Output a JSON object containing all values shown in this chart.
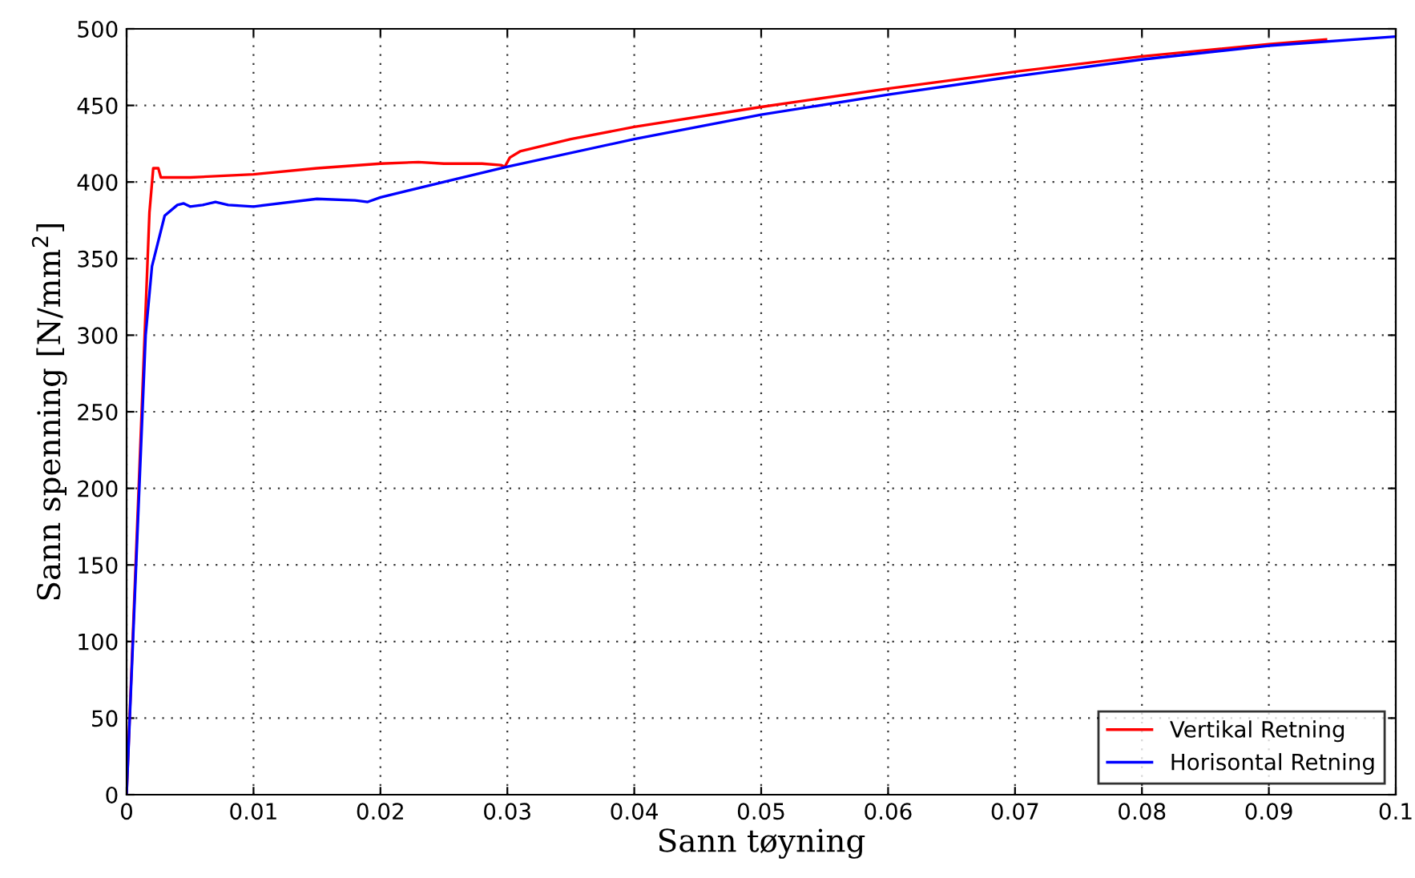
{
  "chart_data": {
    "type": "line",
    "xlabel": "Sann tøyning",
    "ylabel": "Sann spenning [N/mm$^{2}$]",
    "xlim": [
      0,
      0.1
    ],
    "ylim": [
      0,
      500
    ],
    "xticks": [
      0,
      0.01,
      0.02,
      0.03,
      0.04,
      0.05,
      0.06,
      0.07,
      0.08,
      0.09,
      0.1
    ],
    "yticks": [
      0,
      50,
      100,
      150,
      200,
      250,
      300,
      350,
      400,
      450,
      500
    ],
    "grid": true,
    "legend": "bottom right",
    "line_style": "solid",
    "marker": "none",
    "series": [
      {
        "name": "Vertikal Retning",
        "color": "#ff0000",
        "x": [
          0,
          0.001,
          0.0018,
          0.0021,
          0.0025,
          0.0027,
          0.005,
          0.01,
          0.015,
          0.02,
          0.023,
          0.025,
          0.028,
          0.0295,
          0.0298,
          0.0302,
          0.031,
          0.035,
          0.04,
          0.05,
          0.06,
          0.07,
          0.08,
          0.09,
          0.0945
        ],
        "values": [
          0,
          210,
          380,
          409,
          409,
          403,
          403,
          405,
          409,
          412,
          413,
          412,
          412,
          411,
          410,
          416,
          420,
          428,
          436,
          449,
          461,
          472,
          482,
          490,
          493
        ]
      },
      {
        "name": "Horisontal Retning",
        "color": "#0000ff",
        "x": [
          0,
          0.001,
          0.0015,
          0.002,
          0.003,
          0.004,
          0.0045,
          0.005,
          0.006,
          0.007,
          0.008,
          0.01,
          0.015,
          0.018,
          0.019,
          0.02,
          0.025,
          0.03,
          0.04,
          0.05,
          0.06,
          0.07,
          0.08,
          0.09,
          0.1
        ],
        "values": [
          0,
          200,
          300,
          345,
          378,
          385,
          386,
          384,
          385,
          387,
          385,
          384,
          389,
          388,
          387,
          390,
          400,
          410,
          428,
          444,
          457,
          469,
          480,
          489,
          495
        ]
      }
    ]
  }
}
